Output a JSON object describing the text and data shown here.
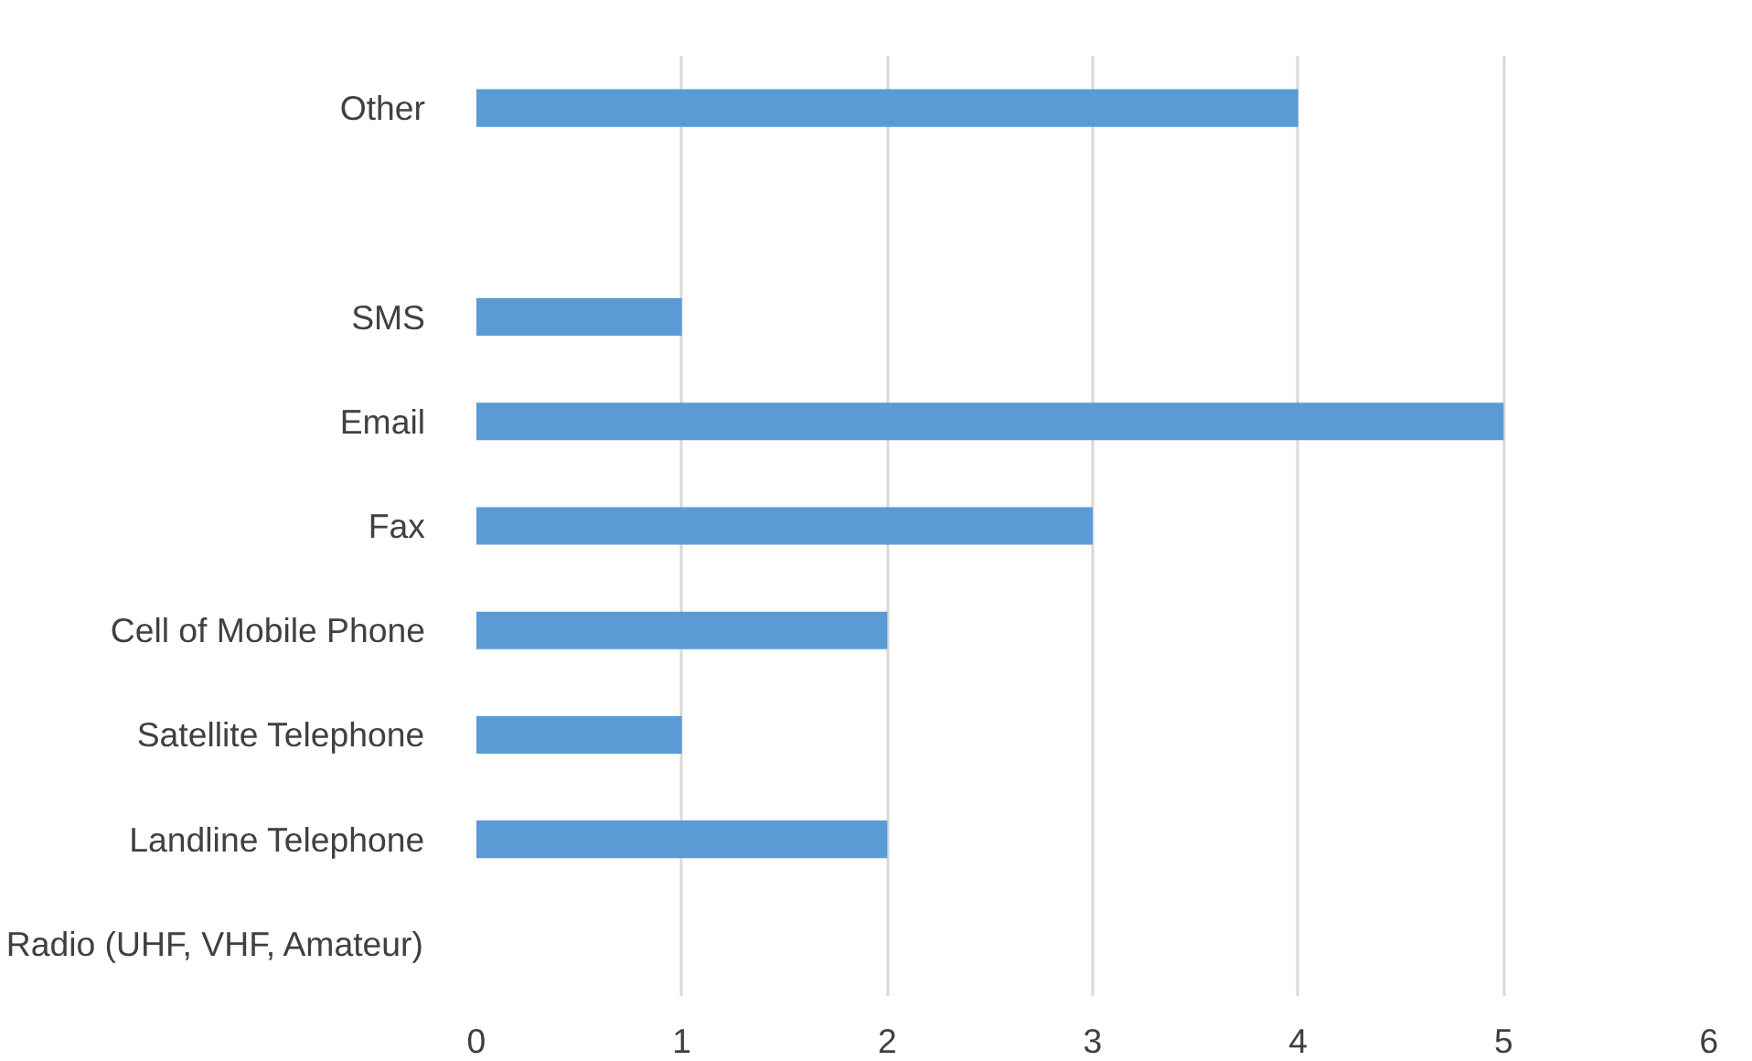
{
  "chart_data": {
    "type": "bar",
    "orientation": "horizontal",
    "categories": [
      "Other",
      null,
      "SMS",
      "Email",
      "Fax",
      "Cell of Mobile Phone",
      "Satellite Telephone",
      "Landline Telephone",
      "Radio (UHF, VHF, Amateur)"
    ],
    "values": [
      4,
      0,
      1,
      5,
      3,
      2,
      1,
      2,
      0
    ],
    "color": "#5b9bd5",
    "xlim": [
      0,
      6
    ],
    "xticks": [
      0,
      1,
      2,
      3,
      4,
      5,
      6
    ],
    "grid": "x"
  }
}
